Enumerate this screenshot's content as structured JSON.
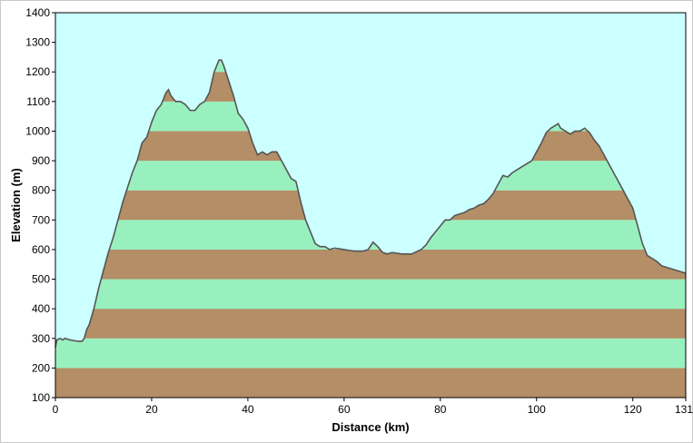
{
  "chart_data": {
    "type": "area",
    "title": "",
    "xlabel": "Distance (km)",
    "ylabel": "Elevation (m)",
    "xlim": [
      0,
      131
    ],
    "ylim": [
      100,
      1400
    ],
    "xticks": [
      0,
      20,
      40,
      60,
      80,
      100,
      120,
      131
    ],
    "yticks": [
      100,
      200,
      300,
      400,
      500,
      600,
      700,
      800,
      900,
      1000,
      1100,
      1200,
      1300,
      1400
    ],
    "grid": false,
    "legend": "none",
    "band_height": 100,
    "colors": {
      "plot_background": "#ccffff",
      "band_light": "#99f0bf",
      "band_dark": "#b48e66",
      "profile_line": "#555555"
    },
    "series": [
      {
        "points": [
          [
            0,
            270
          ],
          [
            0.3,
            295
          ],
          [
            1,
            300
          ],
          [
            1.5,
            295
          ],
          [
            2,
            300
          ],
          [
            3,
            295
          ],
          [
            4,
            292
          ],
          [
            5,
            290
          ],
          [
            5.5,
            290
          ],
          [
            6,
            300
          ],
          [
            6.5,
            330
          ],
          [
            7,
            345
          ],
          [
            8,
            400
          ],
          [
            9,
            470
          ],
          [
            10,
            530
          ],
          [
            11,
            590
          ],
          [
            12,
            640
          ],
          [
            13,
            700
          ],
          [
            14,
            760
          ],
          [
            15,
            810
          ],
          [
            16,
            860
          ],
          [
            17,
            900
          ],
          [
            18,
            960
          ],
          [
            19,
            980
          ],
          [
            20,
            1030
          ],
          [
            21,
            1070
          ],
          [
            22,
            1090
          ],
          [
            23,
            1130
          ],
          [
            23.5,
            1140
          ],
          [
            24,
            1120
          ],
          [
            25,
            1100
          ],
          [
            26,
            1100
          ],
          [
            27,
            1090
          ],
          [
            28,
            1070
          ],
          [
            29,
            1070
          ],
          [
            30,
            1090
          ],
          [
            31,
            1100
          ],
          [
            32,
            1130
          ],
          [
            33,
            1200
          ],
          [
            34,
            1240
          ],
          [
            34.5,
            1240
          ],
          [
            35,
            1220
          ],
          [
            36,
            1170
          ],
          [
            37,
            1120
          ],
          [
            38,
            1060
          ],
          [
            39,
            1040
          ],
          [
            40,
            1010
          ],
          [
            41,
            960
          ],
          [
            42,
            920
          ],
          [
            43,
            930
          ],
          [
            44,
            920
          ],
          [
            45,
            930
          ],
          [
            46,
            930
          ],
          [
            47,
            900
          ],
          [
            48,
            870
          ],
          [
            49,
            840
          ],
          [
            50,
            830
          ],
          [
            51,
            760
          ],
          [
            52,
            700
          ],
          [
            53,
            660
          ],
          [
            54,
            620
          ],
          [
            55,
            610
          ],
          [
            56,
            610
          ],
          [
            57,
            600
          ],
          [
            58,
            605
          ],
          [
            60,
            600
          ],
          [
            62,
            595
          ],
          [
            64,
            595
          ],
          [
            65,
            600
          ],
          [
            66,
            625
          ],
          [
            67,
            610
          ],
          [
            68,
            590
          ],
          [
            69,
            585
          ],
          [
            70,
            590
          ],
          [
            72,
            585
          ],
          [
            74,
            585
          ],
          [
            76,
            600
          ],
          [
            77,
            615
          ],
          [
            78,
            640
          ],
          [
            79,
            660
          ],
          [
            80,
            680
          ],
          [
            81,
            700
          ],
          [
            82,
            700
          ],
          [
            83,
            715
          ],
          [
            84,
            720
          ],
          [
            85,
            725
          ],
          [
            86,
            735
          ],
          [
            87,
            740
          ],
          [
            88,
            750
          ],
          [
            89,
            755
          ],
          [
            90,
            770
          ],
          [
            91,
            790
          ],
          [
            92,
            820
          ],
          [
            93,
            850
          ],
          [
            94,
            845
          ],
          [
            95,
            860
          ],
          [
            96,
            870
          ],
          [
            97,
            880
          ],
          [
            98,
            890
          ],
          [
            99,
            900
          ],
          [
            100,
            930
          ],
          [
            101,
            960
          ],
          [
            102,
            995
          ],
          [
            103,
            1010
          ],
          [
            104,
            1020
          ],
          [
            104.5,
            1025
          ],
          [
            105,
            1010
          ],
          [
            106,
            1000
          ],
          [
            107,
            990
          ],
          [
            108,
            1000
          ],
          [
            109,
            1000
          ],
          [
            110,
            1010
          ],
          [
            111,
            995
          ],
          [
            112,
            970
          ],
          [
            113,
            950
          ],
          [
            114,
            920
          ],
          [
            115,
            890
          ],
          [
            116,
            860
          ],
          [
            117,
            830
          ],
          [
            118,
            800
          ],
          [
            119,
            770
          ],
          [
            120,
            740
          ],
          [
            121,
            680
          ],
          [
            122,
            620
          ],
          [
            123,
            580
          ],
          [
            124,
            570
          ],
          [
            125,
            560
          ],
          [
            126,
            545
          ],
          [
            127,
            540
          ],
          [
            128,
            535
          ],
          [
            129,
            530
          ],
          [
            130,
            525
          ],
          [
            131,
            520
          ]
        ]
      }
    ]
  }
}
